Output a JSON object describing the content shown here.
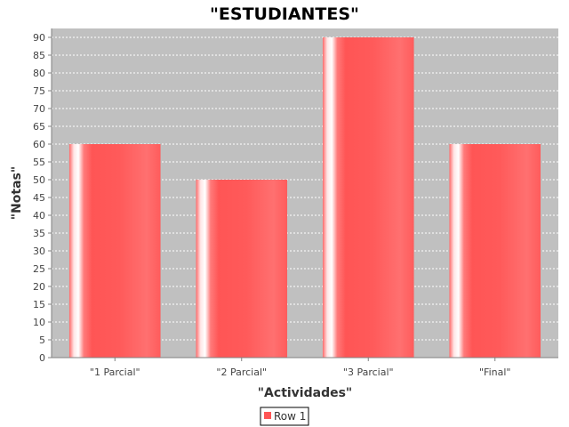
{
  "chart_data": {
    "type": "bar",
    "title": "\"ESTUDIANTES\"",
    "xlabel": "\"Actividades\"",
    "ylabel": "\"Notas\"",
    "categories": [
      "\"1 Parcial\"",
      "\"2 Parcial\"",
      "\"3 Parcial\"",
      "\"Final\""
    ],
    "series": [
      {
        "name": "Row 1",
        "values": [
          60,
          50,
          90,
          60
        ],
        "color": "#ff5555"
      }
    ],
    "ylim": [
      0,
      92.5
    ],
    "yticks": [
      0,
      5,
      10,
      15,
      20,
      25,
      30,
      35,
      40,
      45,
      50,
      55,
      60,
      65,
      70,
      75,
      80,
      85,
      90
    ],
    "grid": true,
    "legend_position": "bottom",
    "plot_background": "#c0c0c0"
  }
}
